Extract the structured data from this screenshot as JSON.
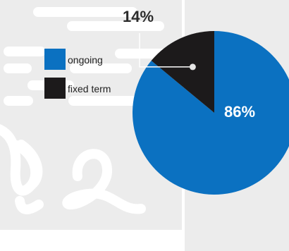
{
  "chart_data": {
    "type": "pie",
    "categories": [
      "ongoing",
      "fixed term"
    ],
    "values": [
      86,
      14
    ],
    "data_labels": [
      "86%",
      "14%"
    ],
    "colors": [
      "#0b71c1",
      "#1c1a1b"
    ],
    "legend_position": "left",
    "start_angle_deg": 0,
    "direction": "clockwise"
  },
  "background": {
    "panel_color": "#ececec",
    "decor_color": "#ffffff"
  }
}
